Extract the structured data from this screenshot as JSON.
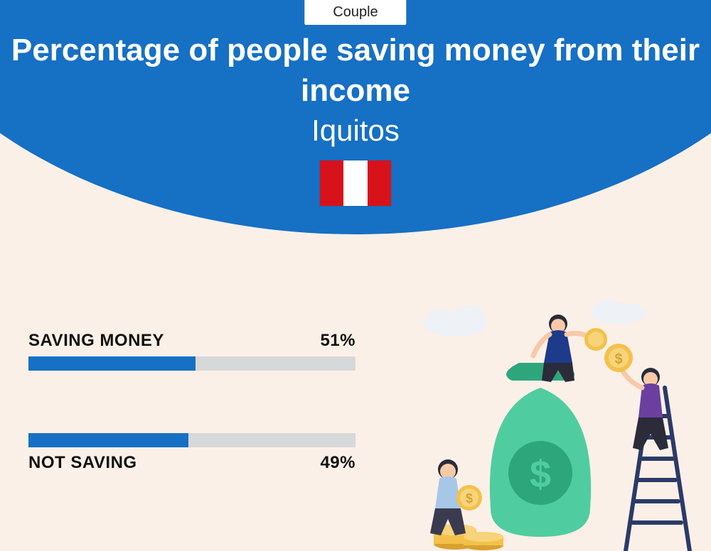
{
  "badge": "Couple",
  "title": "Percentage of people saving money from their income",
  "subtitle": "Iquitos",
  "flag": {
    "left": "#d8121a",
    "center": "#ffffff",
    "right": "#d8121a"
  },
  "colors": {
    "arc": "#1670c4",
    "bar_fill": "#1670c4",
    "bar_track": "#d7d8da",
    "background": "#fbf0e7"
  },
  "bars": [
    {
      "label": "SAVING MONEY",
      "value": 51,
      "display": "51%",
      "label_position": "above"
    },
    {
      "label": "NOT SAVING",
      "value": 49,
      "display": "49%",
      "label_position": "below"
    }
  ],
  "illustration": {
    "bag": "#4fcda0",
    "bag_dark": "#2ea67b",
    "coin": "#f3c14b",
    "coin_dark": "#d9a12f",
    "skin": "#f7c9a8",
    "person1_top": "#1e3a8a",
    "person1_bottom": "#2b2b3a",
    "person2_top": "#6b3fa0",
    "person2_bottom": "#2b2b3a",
    "person3_top": "#a7c7e7",
    "person3_bottom": "#3b3b4f",
    "ladder": "#2b3a67",
    "cloud": "#eef1f6"
  }
}
